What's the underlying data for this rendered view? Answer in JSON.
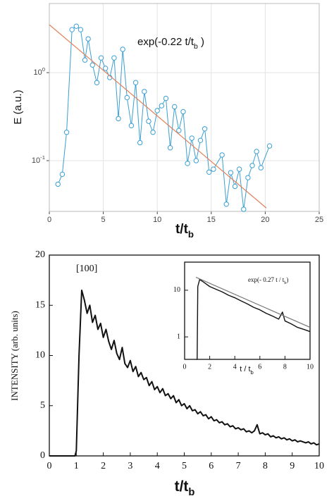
{
  "chart_data": [
    {
      "type": "line",
      "log_y": true,
      "grid": true,
      "xlim": [
        0,
        25
      ],
      "xticks": [
        0,
        5,
        10,
        15,
        20,
        25
      ],
      "ylim": [
        0.0265,
        6.1
      ],
      "yticks": [
        {
          "value": 1,
          "label": "10",
          "exp": "0"
        },
        {
          "value": 0.1,
          "label": "10",
          "exp": "-1"
        }
      ],
      "xlabel": {
        "text": "t/t",
        "sub": "b"
      },
      "ylabel": {
        "text": "E (a.u.)"
      },
      "annotation": {
        "text": "exp(-0.22 t/t",
        "sub": "b",
        "tail": " )"
      },
      "series": [
        {
          "color": "#3b9fd1",
          "marker": "circle",
          "x": [
            0.8,
            1.2,
            1.6,
            2.1,
            2.5,
            2.9,
            3.3,
            3.6,
            4.0,
            4.4,
            4.8,
            5.2,
            5.6,
            6.0,
            6.4,
            6.8,
            7.2,
            7.6,
            8.0,
            8.4,
            8.8,
            9.2,
            9.6,
            10.0,
            10.4,
            10.8,
            11.2,
            11.6,
            12.0,
            12.4,
            12.8,
            13.2,
            13.6,
            14.0,
            14.4,
            14.8,
            15.2,
            16.0,
            16.4,
            16.8,
            17.2,
            17.6,
            18.0,
            18.4,
            18.8,
            19.2,
            19.6,
            20.4
          ],
          "values": [
            0.054,
            0.07,
            0.21,
            3.08,
            3.37,
            3.08,
            1.39,
            2.42,
            1.22,
            0.77,
            1.47,
            1.12,
            0.88,
            1.47,
            0.3,
            1.84,
            0.52,
            0.25,
            0.77,
            0.16,
            0.61,
            0.28,
            0.21,
            0.37,
            0.42,
            0.51,
            0.14,
            0.41,
            0.22,
            0.36,
            0.093,
            0.18,
            0.1,
            0.17,
            0.23,
            0.074,
            0.08,
            0.116,
            0.032,
            0.073,
            0.051,
            0.08,
            0.028,
            0.064,
            0.088,
            0.127,
            0.083,
            0.147
          ]
        },
        {
          "color": "#e0805a",
          "x": [
            0,
            20.1
          ],
          "values": [
            3.5,
            0.029
          ]
        }
      ]
    },
    {
      "type": "line",
      "log_y": false,
      "grid": false,
      "xlim": [
        0,
        10
      ],
      "xticks": [
        0,
        1,
        2,
        3,
        4,
        5,
        6,
        7,
        8,
        9,
        10
      ],
      "ylim": [
        0,
        20
      ],
      "yticks": [
        0,
        5,
        10,
        15,
        20
      ],
      "xlabel": {
        "text": "t/t",
        "sub": "b"
      },
      "ylabel": {
        "text": "INTENSITY  (arb. units)"
      },
      "annotation": {
        "text": "[100]"
      },
      "series": [
        {
          "color": "#111111",
          "x": [
            0,
            0.5,
            0.95,
            1.0,
            1.1,
            1.2,
            1.3,
            1.4,
            1.5,
            1.6,
            1.7,
            1.8,
            1.9,
            2.0,
            2.1,
            2.2,
            2.3,
            2.4,
            2.5,
            2.6,
            2.7,
            2.8,
            2.9,
            3.0,
            3.1,
            3.2,
            3.3,
            3.4,
            3.5,
            3.6,
            3.7,
            3.8,
            3.9,
            4.0,
            4.1,
            4.2,
            4.3,
            4.4,
            4.5,
            4.6,
            4.7,
            4.8,
            4.9,
            5.0,
            5.1,
            5.2,
            5.3,
            5.4,
            5.5,
            5.6,
            5.7,
            5.8,
            5.9,
            6.0,
            6.1,
            6.2,
            6.3,
            6.4,
            6.5,
            6.6,
            6.7,
            6.8,
            6.9,
            7.0,
            7.1,
            7.2,
            7.3,
            7.4,
            7.5,
            7.6,
            7.7,
            7.8,
            7.9,
            8.0,
            8.1,
            8.2,
            8.3,
            8.4,
            8.5,
            8.6,
            8.7,
            8.8,
            8.9,
            9.0,
            9.1,
            9.2,
            9.3,
            9.4,
            9.5,
            9.6,
            9.7,
            9.8,
            9.9,
            10.0
          ],
          "values": [
            0,
            0,
            0,
            0.5,
            10,
            16.5,
            15.5,
            14.2,
            15.0,
            13.3,
            14.0,
            12.6,
            13.2,
            11.8,
            12.6,
            11.4,
            10.6,
            11.5,
            10.2,
            9.6,
            10.8,
            9.2,
            8.8,
            9.5,
            8.4,
            8.9,
            7.9,
            8.3,
            7.6,
            7.8,
            7.0,
            7.4,
            6.6,
            6.9,
            6.3,
            6.7,
            6.0,
            6.2,
            5.7,
            6.0,
            5.3,
            5.6,
            5.0,
            5.2,
            4.7,
            5.0,
            4.5,
            4.6,
            4.2,
            4.4,
            4.0,
            4.1,
            3.7,
            3.9,
            3.5,
            3.6,
            3.3,
            3.4,
            3.1,
            3.2,
            2.9,
            3.0,
            2.7,
            2.8,
            2.6,
            2.7,
            2.4,
            2.5,
            2.3,
            2.5,
            3.1,
            2.2,
            2.3,
            2.1,
            2.2,
            1.9,
            2.0,
            1.8,
            1.9,
            1.7,
            1.8,
            1.6,
            1.7,
            1.5,
            1.6,
            1.4,
            1.5,
            1.4,
            1.3,
            1.4,
            1.2,
            1.3,
            1.1,
            1.2
          ]
        }
      ]
    },
    {
      "type": "line",
      "log_y": true,
      "grid": false,
      "xlim": [
        0,
        10
      ],
      "xticks": [
        0,
        2,
        4,
        6,
        8,
        10
      ],
      "ylim": [
        0.33,
        40
      ],
      "yticks": [
        1,
        10
      ],
      "xlabel": {
        "text": "t / t",
        "sub": "b"
      },
      "annotation": {
        "text": "exp(- 0.27 t / t",
        "sub": "b",
        "tail": ")"
      },
      "series": [
        {
          "color": "#111111",
          "x": [
            0.95,
            1.0,
            1.05,
            1.2,
            1.5,
            2,
            2.5,
            3,
            3.5,
            4,
            4.5,
            5,
            5.5,
            6,
            6.5,
            7,
            7.5,
            7.8,
            8,
            8.5,
            9,
            9.5,
            10
          ],
          "values": [
            0.33,
            0.33,
            12,
            17,
            15,
            12,
            10.5,
            9.2,
            7.8,
            6.9,
            5.9,
            5.1,
            4.3,
            3.8,
            3.2,
            2.8,
            2.4,
            3.4,
            2.2,
            1.9,
            1.6,
            1.45,
            1.3
          ]
        },
        {
          "color": "#777777",
          "x": [
            0.9,
            10
          ],
          "values": [
            19,
            1.6
          ]
        }
      ]
    }
  ]
}
